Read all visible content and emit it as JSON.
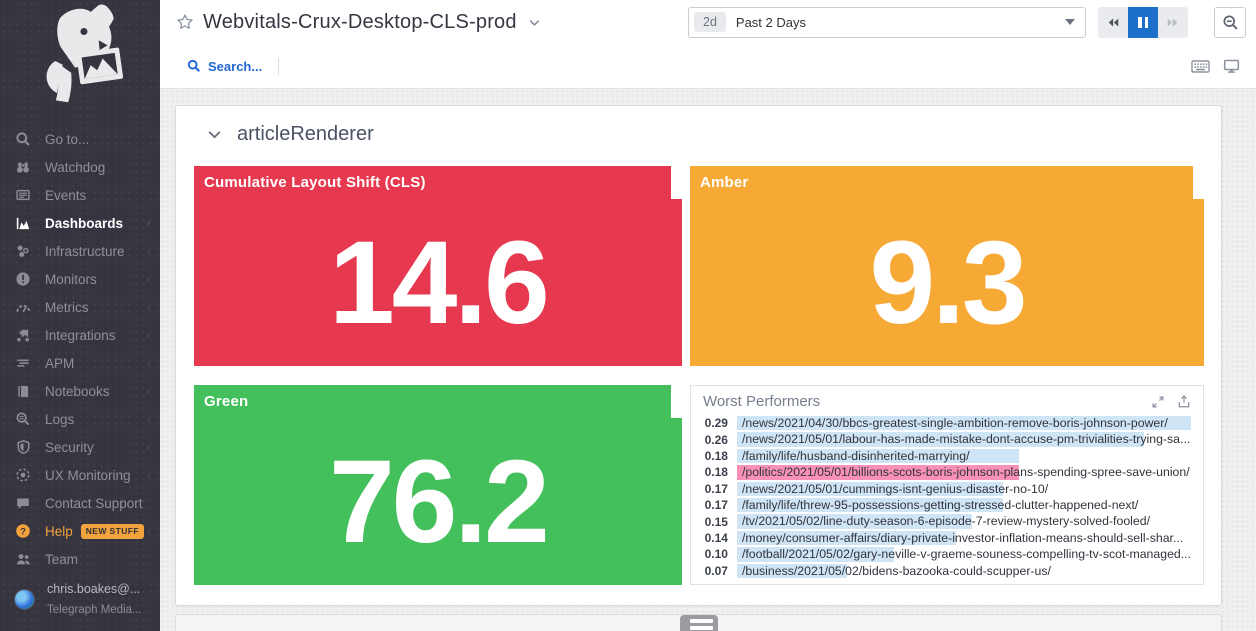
{
  "colors": {
    "sidebar_bg": "#36343f",
    "accent_orange": "#f2a33b",
    "link_blue": "#2468d3",
    "pause_blue": "#1c70ca",
    "tile_red": "#e63950",
    "tile_amber": "#f7a935",
    "tile_green": "#43c05c",
    "bar_blue": "#cfe4f5",
    "bar_pink": "#f991b7"
  },
  "sidebar": {
    "items": [
      {
        "id": "goto",
        "label": "Go to...",
        "icon": "search-icon"
      },
      {
        "id": "watchdog",
        "label": "Watchdog",
        "icon": "binoculars-icon"
      },
      {
        "id": "events",
        "label": "Events",
        "icon": "events-icon"
      },
      {
        "id": "dashboards",
        "label": "Dashboards",
        "icon": "dashboards-icon",
        "active": true,
        "submenu": true
      },
      {
        "id": "infrastructure",
        "label": "Infrastructure",
        "icon": "infrastructure-icon",
        "submenu": true
      },
      {
        "id": "monitors",
        "label": "Monitors",
        "icon": "monitors-icon",
        "submenu": true
      },
      {
        "id": "metrics",
        "label": "Metrics",
        "icon": "metrics-icon",
        "submenu": true
      },
      {
        "id": "integrations",
        "label": "Integrations",
        "icon": "integrations-icon",
        "submenu": true
      },
      {
        "id": "apm",
        "label": "APM",
        "icon": "apm-icon",
        "submenu": true
      },
      {
        "id": "notebooks",
        "label": "Notebooks",
        "icon": "notebooks-icon",
        "submenu": true
      },
      {
        "id": "logs",
        "label": "Logs",
        "icon": "logs-icon",
        "submenu": true
      },
      {
        "id": "security",
        "label": "Security",
        "icon": "shield-icon",
        "submenu": true
      },
      {
        "id": "ux-monitoring",
        "label": "UX Monitoring",
        "icon": "ux-monitoring-icon",
        "submenu": true
      },
      {
        "id": "contact-support",
        "label": "Contact Support",
        "icon": "chat-icon"
      },
      {
        "id": "help",
        "label": "Help",
        "icon": "help-icon",
        "accent": true,
        "badge": "NEW STUFF",
        "submenu": true
      },
      {
        "id": "team",
        "label": "Team",
        "icon": "team-icon"
      }
    ],
    "user": {
      "name": "chris.boakes@...",
      "org": "Telegraph Media..."
    }
  },
  "header": {
    "title": "Webvitals-Crux-Desktop-CLS-prod",
    "search_label": "Search...",
    "time_badge": "2d",
    "time_label": "Past 2 Days"
  },
  "section_title": "articleRenderer",
  "tiles": [
    {
      "id": "cls",
      "title": "Cumulative Layout Shift (CLS)",
      "value": "14.6",
      "color": "#e63950"
    },
    {
      "id": "amber",
      "title": "Amber",
      "value": "9.3",
      "color": "#f7a935"
    },
    {
      "id": "green",
      "title": "Green",
      "value": "76.2",
      "color": "#43c05c"
    }
  ],
  "worst_performers": {
    "title": "Worst Performers",
    "max_value": 0.29,
    "bar_color": "#cfe4f5",
    "highlight_bar_color": "#f991b7",
    "highlighted_row": 3,
    "rows": [
      {
        "value": "0.29",
        "url": "/news/2021/04/30/bbcs-greatest-single-ambition-remove-boris-johnson-power/"
      },
      {
        "value": "0.26",
        "url": "/news/2021/05/01/labour-has-made-mistake-dont-accuse-pm-trivialities-trying-sa..."
      },
      {
        "value": "0.18",
        "url": "/family/life/husband-disinherited-marrying/"
      },
      {
        "value": "0.18",
        "url": "/politics/2021/05/01/billions-scots-boris-johnson-plans-spending-spree-save-union/"
      },
      {
        "value": "0.17",
        "url": "/news/2021/05/01/cummings-isnt-genius-disaster-no-10/"
      },
      {
        "value": "0.17",
        "url": "/family/life/threw-95-possessions-getting-stressed-clutter-happened-next/"
      },
      {
        "value": "0.15",
        "url": "/tv/2021/05/02/line-duty-season-6-episode-7-review-mystery-solved-fooled/"
      },
      {
        "value": "0.14",
        "url": "/money/consumer-affairs/diary-private-investor-inflation-means-should-sell-shar..."
      },
      {
        "value": "0.10",
        "url": "/football/2021/05/02/gary-neville-v-graeme-souness-compelling-tv-scot-managed..."
      },
      {
        "value": "0.07",
        "url": "/business/2021/05/02/bidens-bazooka-could-scupper-us/"
      }
    ]
  }
}
